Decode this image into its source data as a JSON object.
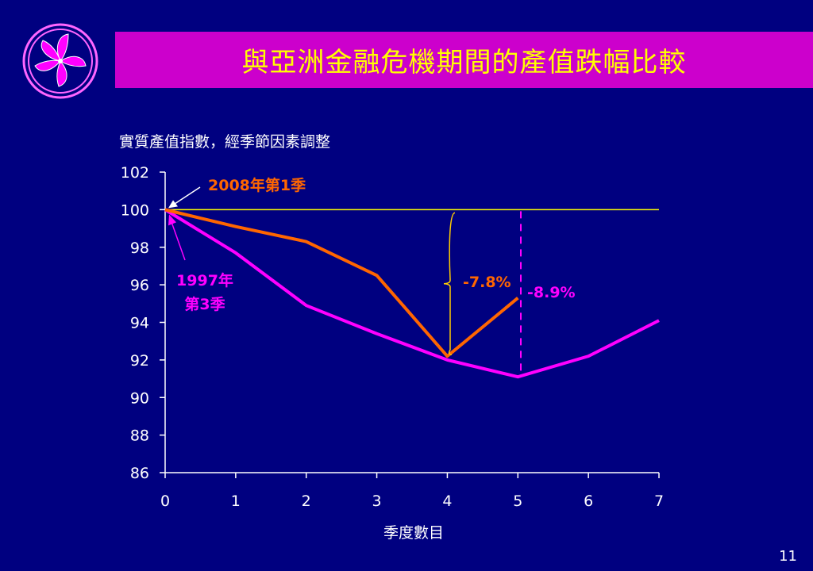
{
  "title": "與亞洲金融危機期間的產值跌幅比較",
  "page_number": "11",
  "colors": {
    "background": "#000080",
    "title_bar": "#cc00cc",
    "title_text": "#ffff00",
    "axis": "#ffff00",
    "series_2008": "#ff6600",
    "series_1997": "#ff00ff",
    "brace": "#ffcc00",
    "text": "#ffffff"
  },
  "chart_data": {
    "type": "line",
    "ylabel": "實質產值指數，經季節因素調整",
    "xlabel": "季度數目",
    "ylim": [
      86,
      102
    ],
    "yticks": [
      86,
      88,
      90,
      92,
      94,
      96,
      98,
      100,
      102
    ],
    "xlim": [
      0,
      7
    ],
    "xticks": [
      0,
      1,
      2,
      3,
      4,
      5,
      6,
      7
    ],
    "reference_line": 100,
    "series": [
      {
        "name": "2008年第1季",
        "x": [
          0,
          1,
          2,
          3,
          4,
          5
        ],
        "values": [
          100.0,
          99.1,
          98.3,
          96.5,
          92.2,
          95.3
        ]
      },
      {
        "name": "1997年第3季",
        "x": [
          0,
          1,
          2,
          3,
          4,
          5,
          6,
          7
        ],
        "values": [
          100.0,
          97.7,
          94.9,
          93.4,
          92.0,
          91.1,
          92.2,
          94.1
        ]
      }
    ],
    "annotations": {
      "series_2008_label": "2008年第1季",
      "series_1997_label_line1": "1997年",
      "series_1997_label_line2": "第3季",
      "drop_2008": "-7.8%",
      "drop_1997": "-8.9%"
    }
  }
}
